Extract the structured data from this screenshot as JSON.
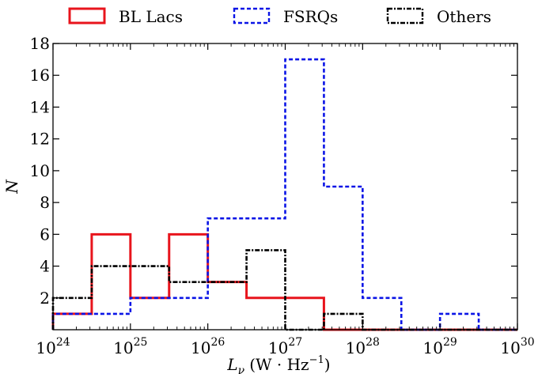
{
  "chart_data": {
    "type": "step",
    "xscale": "log",
    "xlabel": "L_ν (W·Hz⁻¹)",
    "xlabel_parts": {
      "symbol": "L",
      "sub": "ν",
      "unit_open": "(W · Hz",
      "sup": "−1",
      "unit_close": ")"
    },
    "ylabel": "N",
    "xlim": [
      1e+24,
      1e+30
    ],
    "ylim": [
      0,
      18
    ],
    "x_ticks": [
      {
        "value": 1e+24,
        "base": "10",
        "exp": "24"
      },
      {
        "value": 1e+25,
        "base": "10",
        "exp": "25"
      },
      {
        "value": 1e+26,
        "base": "10",
        "exp": "26"
      },
      {
        "value": 1e+27,
        "base": "10",
        "exp": "27"
      },
      {
        "value": 1e+28,
        "base": "10",
        "exp": "28"
      },
      {
        "value": 1e+29,
        "base": "10",
        "exp": "29"
      },
      {
        "value": 1e+30,
        "base": "10",
        "exp": "30"
      }
    ],
    "y_ticks": [
      2,
      4,
      6,
      8,
      10,
      12,
      14,
      16,
      18
    ],
    "bin_edges_log10": [
      24.0,
      24.5,
      25.0,
      25.5,
      26.0,
      26.5,
      27.0,
      27.5,
      28.0,
      28.5,
      29.0,
      29.5,
      30.0
    ],
    "series": [
      {
        "name": "BL Lacs",
        "color": "#e8141c",
        "style": "solid",
        "counts": [
          1,
          6,
          2,
          6,
          3,
          2,
          2,
          0,
          0,
          0,
          0,
          0
        ]
      },
      {
        "name": "FSRQs",
        "color": "#0a14e6",
        "style": "dashed",
        "counts": [
          1,
          1,
          2,
          2,
          7,
          7,
          17,
          9,
          2,
          0,
          1,
          0
        ]
      },
      {
        "name": "Others",
        "color": "#000000",
        "style": "dashdot",
        "counts": [
          2,
          4,
          4,
          3,
          3,
          5,
          0,
          1,
          0,
          0,
          0,
          0
        ]
      }
    ],
    "legend_position": "top-center",
    "grid": false
  }
}
